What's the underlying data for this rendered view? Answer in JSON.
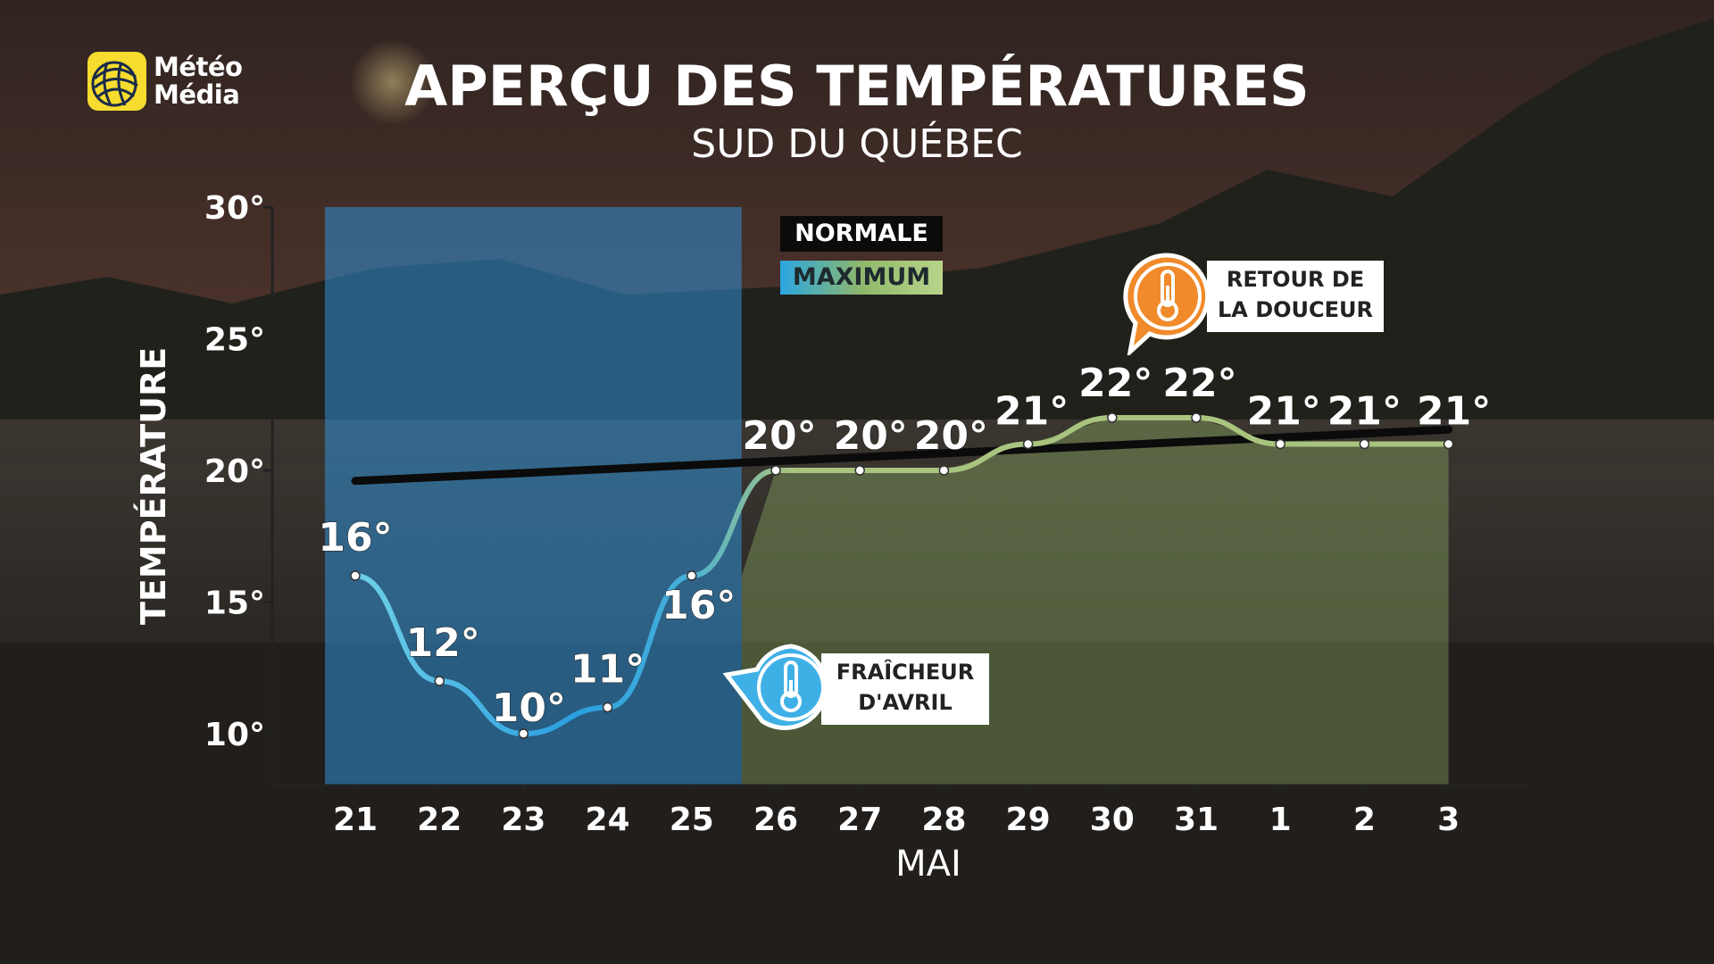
{
  "brand": {
    "name_line1": "Météo",
    "name_line2": "Média",
    "icon": "globe-icon",
    "color": "#f5dc2e"
  },
  "title": "APERÇU DES TEMPÉRATURES",
  "subtitle": "SUD DU QUÉBEC",
  "legend": {
    "normale": "NORMALE",
    "maximum": "MAXIMUM",
    "placement": "top-center"
  },
  "callouts": {
    "warm": {
      "line1": "RETOUR DE",
      "line2": "LA DOUCEUR",
      "icon": "thermometer-hot-icon",
      "color": "#f08a2a"
    },
    "cool": {
      "line1": "FRAÎCHEUR",
      "line2": "D'AVRIL",
      "icon": "thermometer-cold-icon",
      "color": "#3eb0e6"
    }
  },
  "chart_data": {
    "type": "line",
    "title": "APERÇU DES TEMPÉRATURES",
    "subtitle": "SUD DU QUÉBEC",
    "xlabel": "MAI",
    "ylabel": "TEMPÉRATURE",
    "categories": [
      "21",
      "22",
      "23",
      "24",
      "25",
      "26",
      "27",
      "28",
      "29",
      "30",
      "31",
      "1",
      "2",
      "3"
    ],
    "ylim": [
      8,
      30
    ],
    "yticks": [
      10,
      15,
      20,
      25,
      30
    ],
    "ytick_labels": [
      "10°",
      "15°",
      "20°",
      "25°",
      "30°"
    ],
    "series": [
      {
        "name": "MAXIMUM",
        "values": [
          16,
          12,
          10,
          11,
          16,
          20,
          20,
          20,
          21,
          22,
          22,
          21,
          21,
          21
        ],
        "labels": [
          "16°",
          "12°",
          "10°",
          "11°",
          "16°",
          "20°",
          "20°",
          "20°",
          "21°",
          "22°",
          "22°",
          "21°",
          "21°",
          "21°"
        ]
      },
      {
        "name": "NORMALE",
        "values": [
          19.6,
          19.75,
          19.9,
          20.05,
          20.2,
          20.35,
          20.5,
          20.65,
          20.8,
          20.95,
          21.1,
          21.25,
          21.4,
          21.55
        ]
      }
    ],
    "cool_period": [
      "21",
      "25"
    ],
    "colors": {
      "cool": "#2f8fd6",
      "warm": "#9cc46e",
      "normale": "#0b0b0b"
    },
    "grid": false
  }
}
